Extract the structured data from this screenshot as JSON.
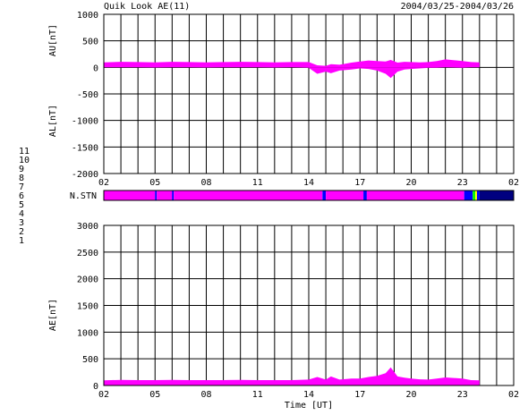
{
  "chart_data": [
    {
      "type": "area",
      "title": "Quik Look AE(11)",
      "date_range": "2004/03/25-2004/03/26",
      "ylabel_upper": "AU[nT]",
      "ylabel_lower": "AL[nT]",
      "ylim": [
        -2000,
        1000
      ],
      "y_ticks": [
        1000,
        500,
        0,
        -500,
        -1000,
        -1500,
        -2000
      ],
      "x_tick_labels": [
        "02",
        "05",
        "08",
        "11",
        "14",
        "17",
        "20",
        "23",
        "02"
      ],
      "x_range_hours": [
        0,
        24
      ],
      "fill_color": "#ff00ff",
      "au_series": {
        "name": "AU",
        "x": [
          0,
          1,
          2,
          3,
          4,
          5,
          6,
          7,
          8,
          9,
          10,
          11,
          12,
          12.5,
          13,
          13.3,
          13.8,
          14.5,
          15,
          15.5,
          16,
          16.5,
          16.8,
          17.2,
          17.6,
          18,
          18.5,
          19,
          19.5,
          20,
          21,
          21.5,
          22
        ],
        "values": [
          95,
          105,
          100,
          95,
          105,
          100,
          95,
          100,
          105,
          100,
          95,
          100,
          100,
          40,
          30,
          60,
          50,
          90,
          110,
          130,
          120,
          110,
          140,
          90,
          105,
          100,
          95,
          100,
          120,
          150,
          120,
          100,
          95
        ]
      },
      "al_series": {
        "name": "AL",
        "x": [
          0,
          1,
          2,
          3,
          4,
          5,
          6,
          7,
          8,
          9,
          10,
          11,
          12,
          12.5,
          13,
          13.3,
          13.8,
          14.5,
          15,
          15.5,
          16,
          16.5,
          16.8,
          17.2,
          17.6,
          18,
          18.5,
          19,
          19.5,
          20,
          21,
          21.5,
          22
        ],
        "values": [
          0,
          0,
          0,
          -5,
          0,
          0,
          -5,
          0,
          0,
          0,
          -5,
          0,
          -10,
          -120,
          -80,
          -110,
          -60,
          -40,
          -20,
          -30,
          -60,
          -120,
          -200,
          -80,
          -40,
          -30,
          -20,
          -10,
          -10,
          0,
          -10,
          0,
          0
        ]
      }
    },
    {
      "type": "heatmap",
      "ylabel": "N.STN",
      "legend_levels": [
        {
          "label": "11",
          "color": "#00ffff"
        },
        {
          "label": "10",
          "color": "#ff00ff"
        },
        {
          "label": "9",
          "color": "#0000ff"
        },
        {
          "label": "8",
          "color": "#ffff00"
        },
        {
          "label": "7",
          "color": "#00ff00"
        },
        {
          "label": "6",
          "color": "#ff0000"
        },
        {
          "label": "5",
          "color": "#ffffff"
        },
        {
          "label": "4",
          "color": "#c0c0c0"
        },
        {
          "label": "3",
          "color": "#008080"
        },
        {
          "label": "2",
          "color": "#800080"
        },
        {
          "label": "1",
          "color": "#000080"
        }
      ],
      "segments": [
        {
          "start": 0,
          "end": 3.0,
          "level": "10"
        },
        {
          "start": 3.0,
          "end": 3.1,
          "level": "9"
        },
        {
          "start": 3.1,
          "end": 4.0,
          "level": "10"
        },
        {
          "start": 4.0,
          "end": 4.1,
          "level": "9"
        },
        {
          "start": 4.1,
          "end": 12.8,
          "level": "10"
        },
        {
          "start": 12.8,
          "end": 13.0,
          "level": "9"
        },
        {
          "start": 13.0,
          "end": 15.2,
          "level": "10"
        },
        {
          "start": 15.2,
          "end": 15.4,
          "level": "9"
        },
        {
          "start": 15.4,
          "end": 21.1,
          "level": "10"
        },
        {
          "start": 21.1,
          "end": 21.6,
          "level": "9"
        },
        {
          "start": 21.6,
          "end": 21.75,
          "level": "7"
        },
        {
          "start": 21.75,
          "end": 21.85,
          "level": "8"
        },
        {
          "start": 21.85,
          "end": 22.0,
          "level": "9"
        },
        {
          "start": 22.0,
          "end": 24.0,
          "level": "1"
        }
      ]
    },
    {
      "type": "area",
      "ylabel": "AE[nT]",
      "xlabel": "Time [UT]",
      "ylim": [
        0,
        3000
      ],
      "y_ticks": [
        3000,
        2500,
        2000,
        1500,
        1000,
        500,
        0
      ],
      "x_tick_labels": [
        "02",
        "05",
        "08",
        "11",
        "14",
        "17",
        "20",
        "23",
        "02"
      ],
      "x_range_hours": [
        0,
        24
      ],
      "fill_color": "#ff00ff",
      "series": [
        {
          "name": "AE",
          "x": [
            0,
            1,
            2,
            3,
            4,
            5,
            6,
            7,
            8,
            9,
            10,
            11,
            12,
            12.5,
            13,
            13.3,
            13.8,
            14.5,
            15,
            15.5,
            16,
            16.5,
            16.8,
            17.2,
            17.6,
            18,
            18.5,
            19,
            19.5,
            20,
            21,
            21.5,
            22
          ],
          "values": [
            95,
            105,
            100,
            100,
            105,
            100,
            100,
            100,
            105,
            100,
            100,
            100,
            110,
            160,
            110,
            170,
            110,
            130,
            130,
            160,
            180,
            230,
            340,
            170,
            145,
            130,
            115,
            110,
            130,
            150,
            130,
            100,
            95
          ]
        }
      ]
    }
  ]
}
